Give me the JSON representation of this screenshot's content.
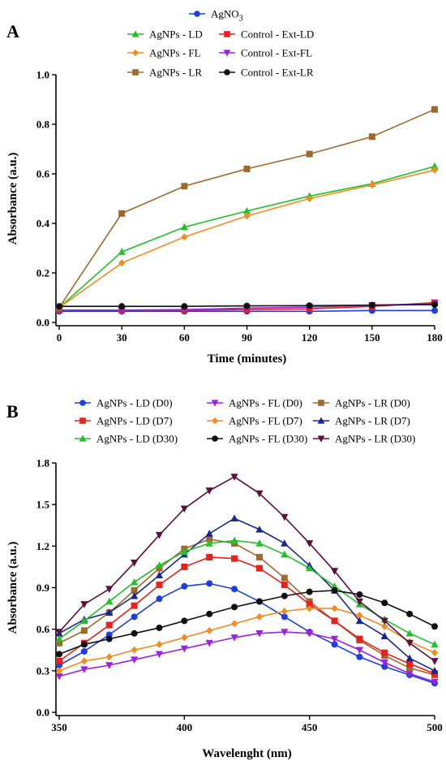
{
  "chart_data": [
    {
      "panel": "A",
      "type": "line",
      "xlabel": "Time (minutes)",
      "ylabel": "Absorbance (a.u.)",
      "xlim": [
        0,
        180
      ],
      "ylim": [
        0,
        1.0
      ],
      "xticks": [
        0,
        30,
        60,
        90,
        120,
        150,
        180
      ],
      "xtick_labels": [
        "0",
        "30",
        "60",
        "90",
        "120",
        "150",
        "180"
      ],
      "yticks": [
        0.0,
        0.2,
        0.4,
        0.6,
        0.8,
        1.0
      ],
      "ytick_labels": [
        "0.0",
        "0.2",
        "0.4",
        "0.6",
        "0.8",
        "1.0"
      ],
      "grid": false,
      "legend_position": "top",
      "legend_columns": 2,
      "legend_header_first": true,
      "x": [
        0,
        30,
        60,
        90,
        120,
        150,
        180
      ],
      "series": [
        {
          "name": "AgNO",
          "name_sub": "3",
          "color": "#1f3de6",
          "marker": "circle",
          "values": [
            0.045,
            0.045,
            0.045,
            0.045,
            0.045,
            0.048,
            0.048
          ]
        },
        {
          "name": "AgNPs - LD",
          "color": "#22c02a",
          "marker": "triangle-up",
          "values": [
            0.06,
            0.285,
            0.385,
            0.45,
            0.51,
            0.56,
            0.63
          ]
        },
        {
          "name": "Control - Ext-LD",
          "color": "#e8201e",
          "marker": "square",
          "values": [
            0.05,
            0.05,
            0.05,
            0.052,
            0.055,
            0.065,
            0.08
          ]
        },
        {
          "name": "AgNPs - FL",
          "color": "#f58a1f",
          "marker": "diamond",
          "values": [
            0.06,
            0.24,
            0.345,
            0.43,
            0.5,
            0.555,
            0.615
          ]
        },
        {
          "name": "Control - Ext-FL",
          "color": "#9b22e0",
          "marker": "triangle-down",
          "values": [
            0.05,
            0.05,
            0.052,
            0.058,
            0.062,
            0.07,
            0.075
          ]
        },
        {
          "name": "AgNPs - LR",
          "color": "#9b6a2c",
          "marker": "square",
          "values": [
            0.06,
            0.44,
            0.55,
            0.62,
            0.68,
            0.75,
            0.86
          ]
        },
        {
          "name": "Control - Ext-LR",
          "color": "#111111",
          "marker": "circle",
          "values": [
            0.065,
            0.065,
            0.065,
            0.067,
            0.068,
            0.07,
            0.072
          ]
        }
      ]
    },
    {
      "panel": "B",
      "type": "line",
      "xlabel": "Wavelenght (nm)",
      "ylabel": "Absorbance (a.u.)",
      "xlim": [
        350,
        500
      ],
      "ylim": [
        0,
        1.8
      ],
      "xticks": [
        350,
        400,
        450,
        500
      ],
      "xtick_labels": [
        "350",
        "400",
        "450",
        "500"
      ],
      "yticks": [
        0.0,
        0.3,
        0.6,
        0.9,
        1.2,
        1.5,
        1.8
      ],
      "ytick_labels": [
        "0.0",
        "0.3",
        "0.6",
        "0.9",
        "1.2",
        "1.5",
        "1.8"
      ],
      "grid": false,
      "legend_position": "top",
      "legend_columns": 3,
      "x": [
        350,
        360,
        370,
        380,
        390,
        400,
        410,
        420,
        430,
        440,
        450,
        460,
        470,
        480,
        490,
        500
      ],
      "series": [
        {
          "name": "AgNPs - LD (D0)",
          "color": "#1f3de6",
          "marker": "circle",
          "values": [
            0.34,
            0.44,
            0.56,
            0.69,
            0.82,
            0.91,
            0.93,
            0.89,
            0.8,
            0.69,
            0.58,
            0.49,
            0.4,
            0.33,
            0.27,
            0.21
          ]
        },
        {
          "name": "AgNPs - FL (D0)",
          "color": "#9b22e0",
          "marker": "triangle-down",
          "values": [
            0.26,
            0.31,
            0.34,
            0.38,
            0.42,
            0.46,
            0.5,
            0.54,
            0.57,
            0.58,
            0.57,
            0.53,
            0.45,
            0.36,
            0.28,
            0.22
          ]
        },
        {
          "name": "AgNPs - LR (D0)",
          "color": "#9b6a2c",
          "marker": "square",
          "values": [
            0.5,
            0.59,
            0.72,
            0.88,
            1.04,
            1.18,
            1.25,
            1.22,
            1.12,
            0.97,
            0.8,
            0.66,
            0.52,
            0.41,
            0.32,
            0.27
          ]
        },
        {
          "name": "AgNPs - LD (D7)",
          "color": "#e8201e",
          "marker": "square",
          "values": [
            0.37,
            0.5,
            0.63,
            0.77,
            0.92,
            1.05,
            1.12,
            1.11,
            1.04,
            0.92,
            0.78,
            0.66,
            0.53,
            0.43,
            0.35,
            0.28
          ]
        },
        {
          "name": "AgNPs - FL (D7)",
          "color": "#f58a1f",
          "marker": "diamond",
          "values": [
            0.3,
            0.37,
            0.4,
            0.45,
            0.49,
            0.54,
            0.59,
            0.64,
            0.69,
            0.73,
            0.75,
            0.75,
            0.7,
            0.62,
            0.51,
            0.43
          ]
        },
        {
          "name": "AgNPs - LR (D7)",
          "color": "#1b2590",
          "marker": "triangle-up",
          "values": [
            0.57,
            0.67,
            0.72,
            0.84,
            0.99,
            1.14,
            1.29,
            1.4,
            1.32,
            1.22,
            1.06,
            0.88,
            0.66,
            0.55,
            0.39,
            0.3
          ]
        },
        {
          "name": "AgNPs - LD (D30)",
          "color": "#22c02a",
          "marker": "triangle-up",
          "values": [
            0.53,
            0.66,
            0.8,
            0.94,
            1.06,
            1.16,
            1.22,
            1.24,
            1.22,
            1.14,
            1.04,
            0.91,
            0.78,
            0.67,
            0.57,
            0.49
          ]
        },
        {
          "name": "AgNPs - FL (D30)",
          "color": "#111111",
          "marker": "circle",
          "values": [
            0.42,
            0.49,
            0.53,
            0.57,
            0.61,
            0.66,
            0.71,
            0.76,
            0.8,
            0.84,
            0.87,
            0.88,
            0.85,
            0.79,
            0.71,
            0.62
          ]
        },
        {
          "name": "AgNPs - LR (D30)",
          "color": "#5a0f3c",
          "marker": "triangle-down",
          "values": [
            0.58,
            0.78,
            0.89,
            1.08,
            1.28,
            1.47,
            1.6,
            1.7,
            1.58,
            1.41,
            1.22,
            1.02,
            0.8,
            0.66,
            0.5,
            0.37
          ]
        }
      ]
    }
  ]
}
